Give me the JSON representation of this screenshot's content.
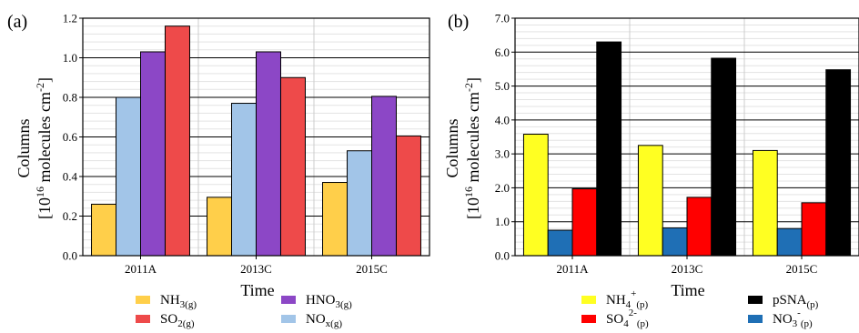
{
  "panels": [
    {
      "label": "(a)",
      "ylabel_line1": "Columns",
      "ylabel_pre": "[10",
      "ylabel_sup": "16",
      "ylabel_mid": " molecules cm",
      "ylabel_sup2": "-2",
      "ylabel_post": "]",
      "xlabel": "Time",
      "legend": [
        {
          "base": "NH",
          "sub": "3(g)",
          "sup": "",
          "sub2": ""
        },
        {
          "base": "HNO",
          "sub": "3(g)",
          "sup": "",
          "sub2": ""
        },
        {
          "base": "SO",
          "sub": "2(g)",
          "sup": "",
          "sub2": ""
        },
        {
          "base": "NO",
          "sub": "x(g)",
          "sup": "",
          "sub2": ""
        }
      ]
    },
    {
      "label": "(b)",
      "ylabel_line1": "Columns",
      "ylabel_pre": "[10",
      "ylabel_sup": "16",
      "ylabel_mid": " molecules cm",
      "ylabel_sup2": "-2",
      "ylabel_post": "]",
      "xlabel": "Time",
      "legend": [
        {
          "base": "NH",
          "sub": "4",
          "sup": "+",
          "sub2": "(p)"
        },
        {
          "base": "pSNA",
          "sub": "(p)",
          "sup": "",
          "sub2": ""
        },
        {
          "base": "SO",
          "sub": "4",
          "sup": "2-",
          "sub2": "(p)"
        },
        {
          "base": "NO",
          "sub": "3",
          "sup": "-",
          "sub2": "(p)"
        }
      ]
    }
  ],
  "chart_data": [
    {
      "type": "bar",
      "categories": [
        "2011A",
        "2013C",
        "2015C"
      ],
      "ylim": [
        0,
        1.2
      ],
      "yticks": [
        "0.0",
        "0.2",
        "0.4",
        "0.6",
        "0.8",
        "1.0",
        "1.2"
      ],
      "grid": true,
      "legend_position": "bottom",
      "series": [
        {
          "name": "NH3(g)",
          "color": "#FFCF4A",
          "values": [
            0.26,
            0.295,
            0.37
          ]
        },
        {
          "name": "NOx(g)",
          "color": "#A2C5E8",
          "values": [
            0.8,
            0.77,
            0.53
          ]
        },
        {
          "name": "HNO3(g)",
          "color": "#8C47C6",
          "values": [
            1.03,
            1.03,
            0.805
          ]
        },
        {
          "name": "SO2(g)",
          "color": "#EE4A4A",
          "values": [
            1.16,
            0.9,
            0.605
          ]
        }
      ]
    },
    {
      "type": "bar",
      "categories": [
        "2011A",
        "2013C",
        "2015C"
      ],
      "ylim": [
        0,
        7.0
      ],
      "yticks": [
        "0.0",
        "1.0",
        "2.0",
        "3.0",
        "4.0",
        "5.0",
        "6.0",
        "7.0"
      ],
      "grid": true,
      "legend_position": "bottom",
      "series": [
        {
          "name": "NH4+(p)",
          "color": "#FFFF22",
          "values": [
            3.58,
            3.25,
            3.1
          ]
        },
        {
          "name": "NO3-(p)",
          "color": "#1F6FB5",
          "values": [
            0.75,
            0.82,
            0.8
          ]
        },
        {
          "name": "SO42-(p)",
          "color": "#FF0000",
          "values": [
            1.97,
            1.72,
            1.56
          ]
        },
        {
          "name": "pSNA(p)",
          "color": "#000000",
          "values": [
            6.3,
            5.82,
            5.48
          ]
        }
      ]
    }
  ]
}
